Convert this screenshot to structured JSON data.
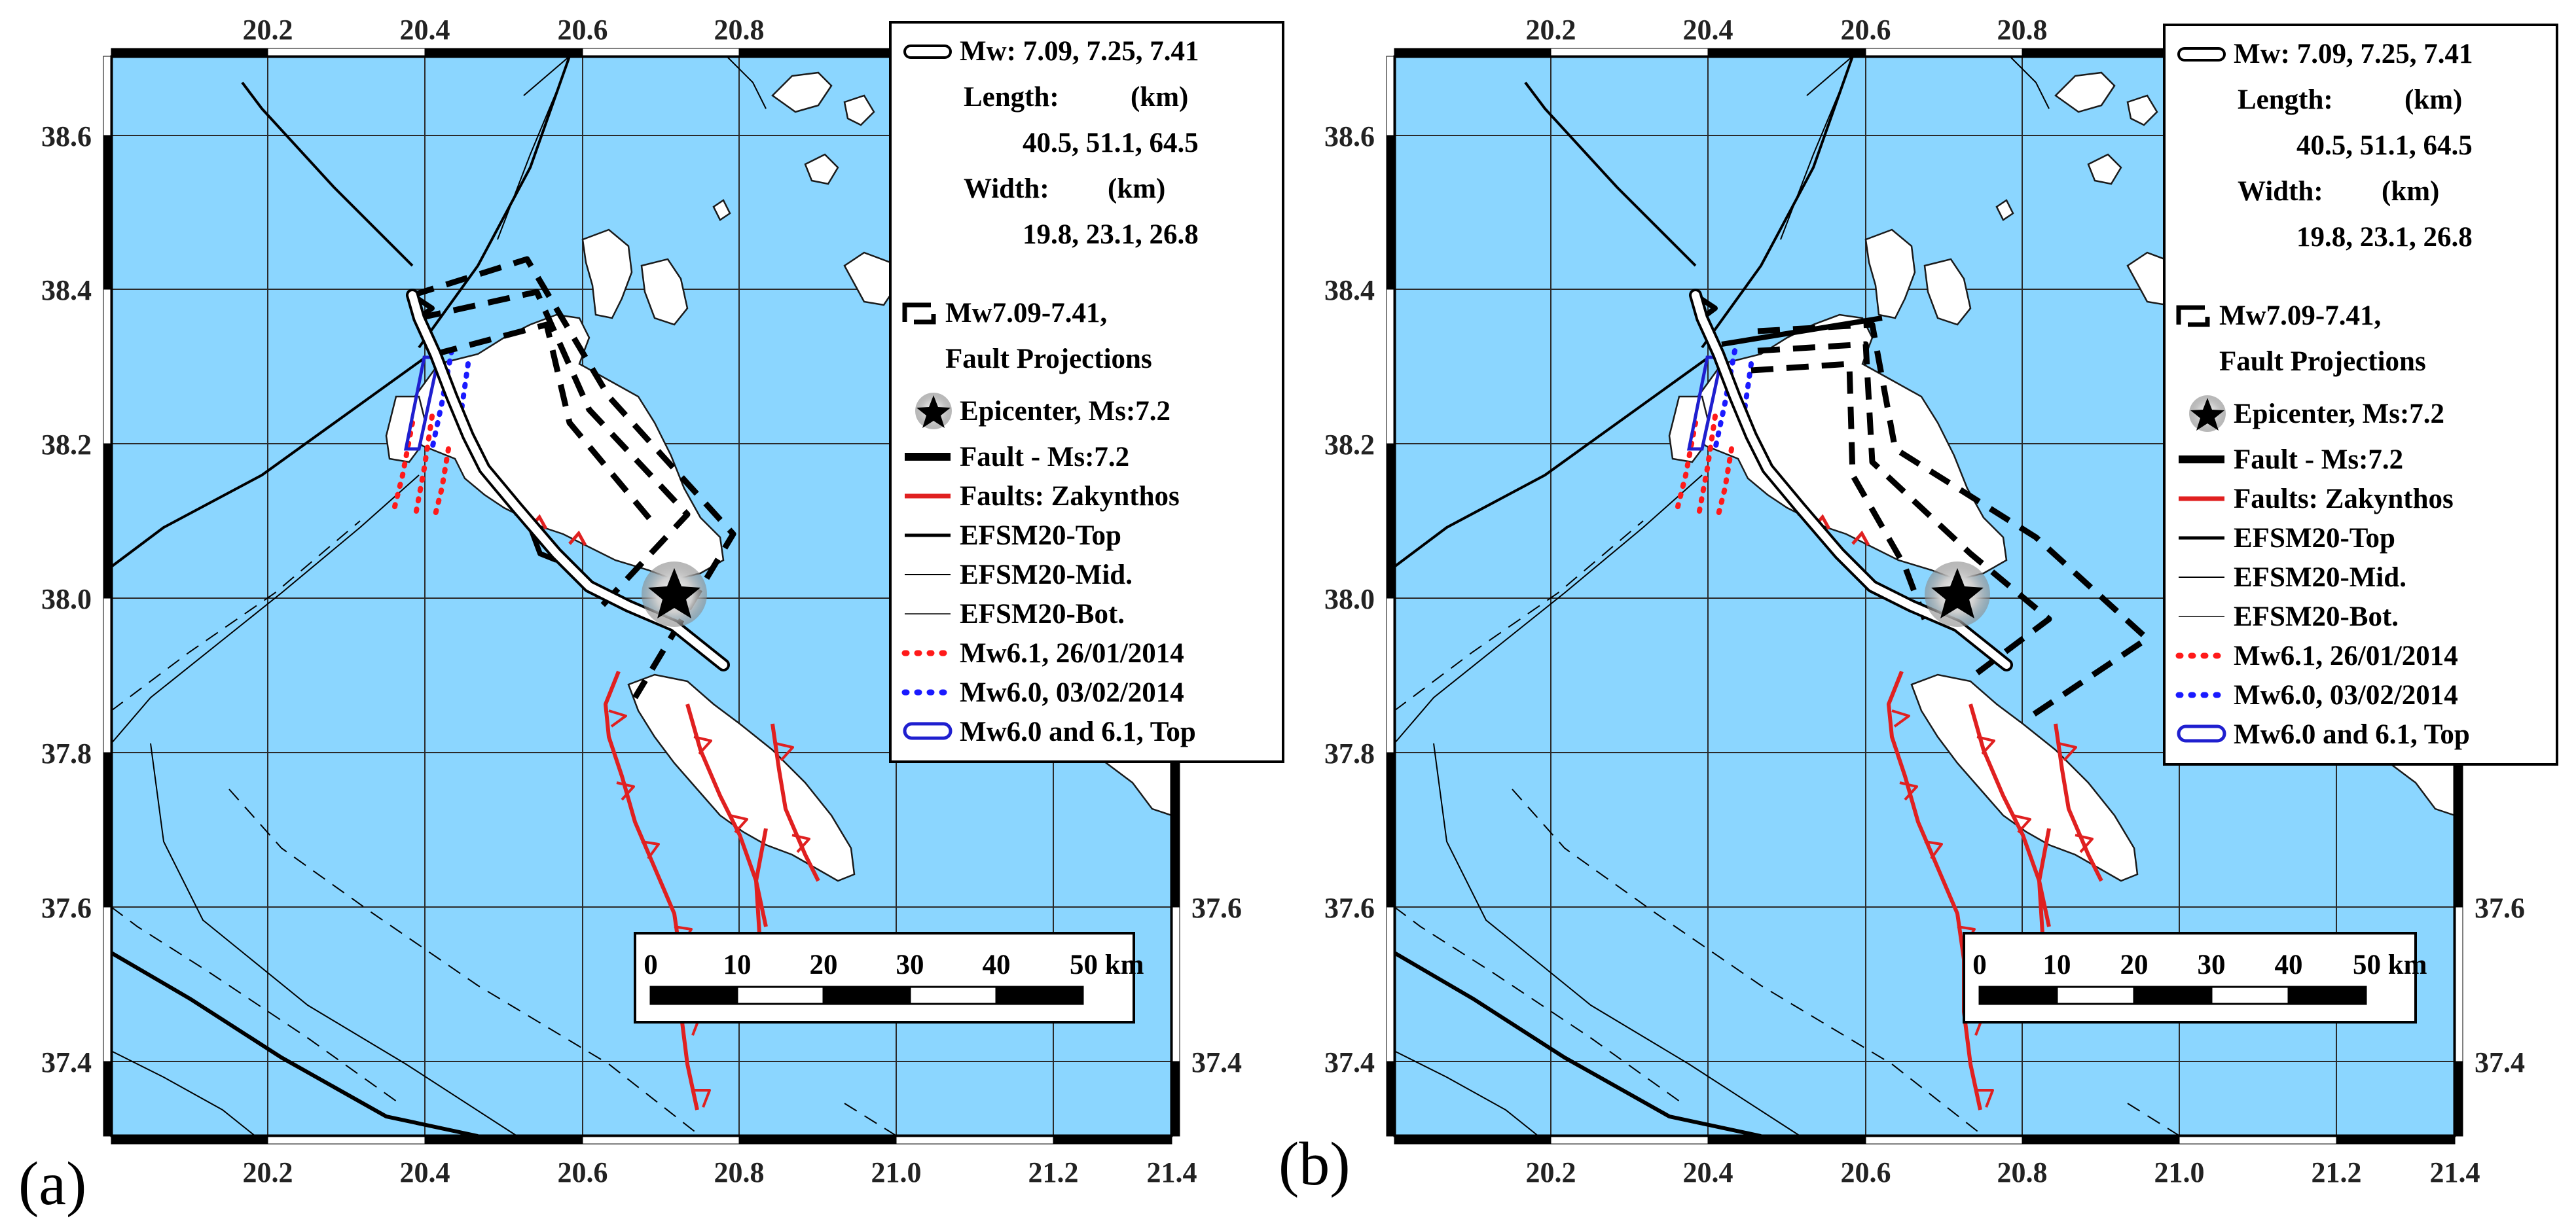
{
  "figure": {
    "colors": {
      "sea": "#8bd6ff",
      "land": "#ffffff",
      "coast": "#1a1a1a",
      "grid": "#2a2a2a",
      "fault_black": "#000000",
      "fault_red": "#e02020",
      "dot_red": "#ff1a1a",
      "dot_blue": "#1a1aff",
      "mw6_box": "#1f1fcf",
      "frame_light": "#ffffff",
      "frame_dark": "#000000"
    },
    "axes": {
      "lon_ticks": [
        "20.2",
        "20.4",
        "20.6",
        "20.8",
        "21.0",
        "21.2",
        "21.4"
      ],
      "lat_ticks": [
        "38.6",
        "38.4",
        "38.2",
        "38.0",
        "37.8",
        "37.6",
        "37.4"
      ],
      "right_lat_ticks": [
        "37.6",
        "37.4"
      ],
      "lon_range": [
        20.0,
        21.4
      ],
      "lat_range": [
        37.3,
        38.7
      ]
    },
    "epicenter": {
      "lon": 20.72,
      "lat": 38.11
    },
    "legend": {
      "mw_line": "Mw: 7.09, 7.25, 7.41",
      "length_label": "Length:",
      "length_unit": "(km)",
      "length_values": "40.5,  51.1,  64.5",
      "width_label": "Width:",
      "width_unit": "(km)",
      "width_values": "19.8,  23.1,  26.8",
      "proj_line1": "Mw7.09-7.41,",
      "proj_line2": "Fault Projections",
      "epicenter": "Epicenter, Ms:7.2",
      "fault_ms": "Fault - Ms:7.2",
      "faults_zak": "Faults: Zakynthos",
      "efsm_top": "EFSM20-Top",
      "efsm_mid": "EFSM20-Mid.",
      "efsm_bot": "EFSM20-Bot.",
      "mw61": "Mw6.1, 26/01/2014",
      "mw60": "Mw6.0, 03/02/2014",
      "mw6_top": "Mw6.0 and 6.1, Top"
    },
    "scalebar": {
      "labels": [
        "0",
        "10",
        "20",
        "30",
        "40",
        "50 km"
      ],
      "max_km": 50
    },
    "panels": [
      {
        "label": "(a)"
      },
      {
        "label": "(b)"
      }
    ]
  }
}
